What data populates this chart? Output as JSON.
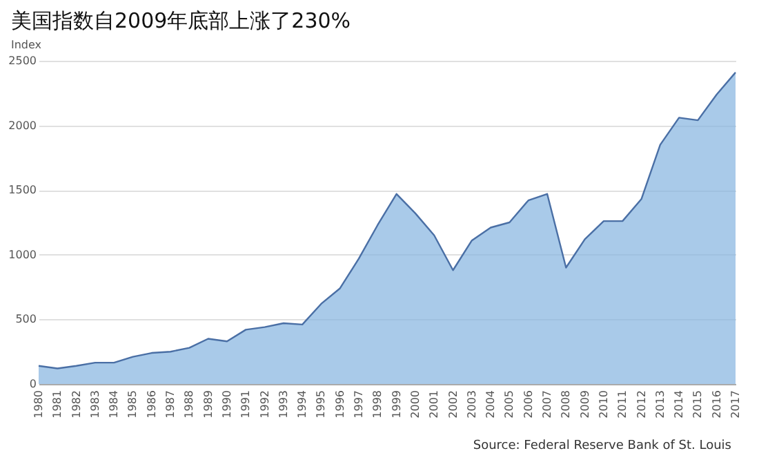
{
  "chart_data": {
    "type": "area",
    "title": "美国指数自2009年底部上涨了230%",
    "ylabel": "Index",
    "categories": [
      "1980",
      "1981",
      "1982",
      "1983",
      "1984",
      "1985",
      "1986",
      "1987",
      "1988",
      "1989",
      "1990",
      "1991",
      "1992",
      "1993",
      "1994",
      "1995",
      "1996",
      "1997",
      "1998",
      "1999",
      "2000",
      "2001",
      "2002",
      "2003",
      "2004",
      "2005",
      "2006",
      "2007",
      "2008",
      "2009",
      "2010",
      "2011",
      "2012",
      "2013",
      "2014",
      "2015",
      "2016",
      "2017"
    ],
    "series": [
      {
        "color": "#85b4e0",
        "values": [
          140,
          120,
          140,
          165,
          165,
          210,
          240,
          250,
          280,
          350,
          330,
          420,
          440,
          470,
          460,
          620,
          740,
          970,
          1230,
          1470,
          1320,
          1150,
          880,
          1110,
          1210,
          1250,
          1420,
          1470,
          900,
          1120,
          1260,
          1260,
          1430,
          1850,
          2060,
          2040,
          2240,
          2410
        ]
      }
    ],
    "ylim": [
      0,
      2500
    ],
    "yticks": [
      0,
      500,
      1000,
      1500,
      2000,
      2500
    ],
    "grid": "y",
    "annotations": [
      "Source: Federal Reserve Bank of St. Louis"
    ]
  }
}
